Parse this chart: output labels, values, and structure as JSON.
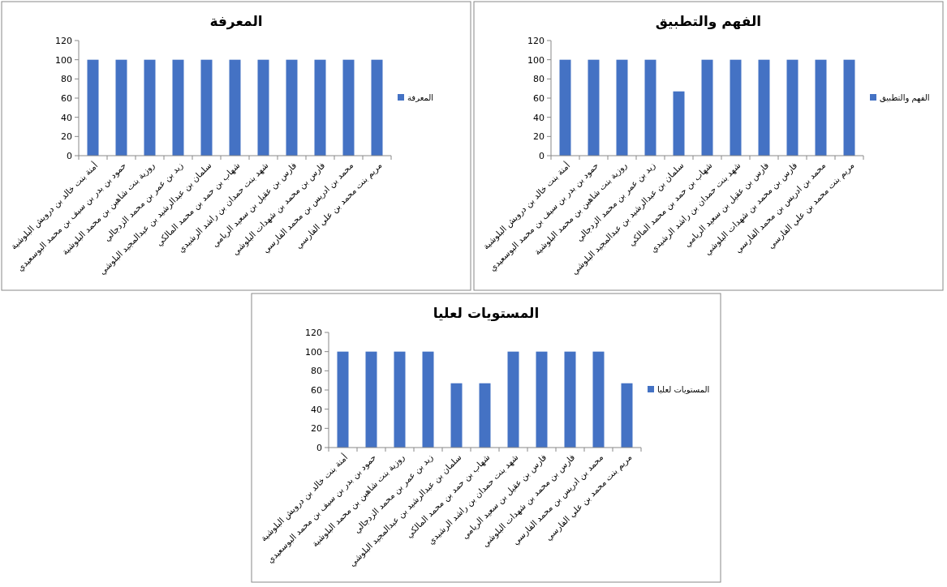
{
  "chart_data": [
    {
      "type": "bar",
      "title": "المعرفة",
      "categories": [
        "أمنة بنت خالد بن درويش  البلوشية",
        "حمود بن بدر بن  سيف بن محمد البوسعيدي",
        "روزية بنت شاهين بن محمد البلوشية",
        "زيد بن عمر بن محمد الزدجالي",
        "سلمان بن عبدالرشيد بن عبدالمجيد البلوشي",
        "شهاب بن حمد بن محمد المالكي",
        "شهد بنت حمدان بن راشد الرشيدي",
        "فارس بن عقيل بن سعيد الريامي",
        "فارس بن محمد بن شهدات البلوشي",
        "محمد بن ادريس بن محمد الفارسي",
        "مريم بنت محمد بن علي الفارسي"
      ],
      "series": [
        {
          "name": "المعرفة",
          "color": "#4472c4",
          "values": [
            100,
            100,
            100,
            100,
            100,
            100,
            100,
            100,
            100,
            100,
            100
          ]
        }
      ],
      "ylim": [
        0,
        120
      ],
      "yticks": [
        0,
        20,
        40,
        60,
        80,
        100,
        120
      ],
      "legend": "right"
    },
    {
      "type": "bar",
      "title": "الفهم والتطبيق",
      "categories": [
        "أمنة بنت خالد بن درويش  البلوشية",
        "حمود بن بدر بن  سيف بن محمد البوسعيدي",
        "روزية بنت شاهين بن محمد البلوشية",
        "زيد بن عمر بن محمد الزدجالي",
        "سلمان بن عبدالرشيد بن عبدالمجيد البلوشي",
        "شهاب بن حمد بن محمد المالكي",
        "شهد بنت حمدان بن راشد الرشيدي",
        "فارس بن عقيل بن سعيد الريامي",
        "فارس بن محمد بن شهدات البلوشي",
        "محمد بن ادريس بن محمد الفارسي",
        "مريم بنت محمد بن علي الفارسي"
      ],
      "series": [
        {
          "name": "الفهم والتطبيق",
          "color": "#4472c4",
          "values": [
            100,
            100,
            100,
            100,
            67,
            100,
            100,
            100,
            100,
            100,
            100
          ]
        }
      ],
      "ylim": [
        0,
        120
      ],
      "yticks": [
        0,
        20,
        40,
        60,
        80,
        100,
        120
      ],
      "legend": "right"
    },
    {
      "type": "bar",
      "title": "المستويات لعليا",
      "categories": [
        "أمنة بنت خالد بن درويش  البلوشية",
        "حمود بن بدر بن  سيف بن محمد البوسعيدي",
        "روزية بنت شاهين بن محمد البلوشية",
        "زيد بن عمر بن محمد الزدجالي",
        "سلمان بن عبدالرشيد بن عبدالمجيد البلوشي",
        "شهاب بن حمد بن محمد المالكي",
        "شهد بنت حمدان بن راشد الرشيدي",
        "فارس بن عقيل بن سعيد الريامي",
        "فارس بن محمد بن شهدات البلوشي",
        "محمد بن ادريس بن محمد الفارسي",
        "مريم بنت محمد بن علي الفارسي"
      ],
      "series": [
        {
          "name": "المستويات لعليا",
          "color": "#4472c4",
          "values": [
            100,
            100,
            100,
            100,
            67,
            67,
            100,
            100,
            100,
            100,
            67
          ]
        }
      ],
      "ylim": [
        0,
        120
      ],
      "yticks": [
        0,
        20,
        40,
        60,
        80,
        100,
        120
      ],
      "legend": "right"
    }
  ]
}
